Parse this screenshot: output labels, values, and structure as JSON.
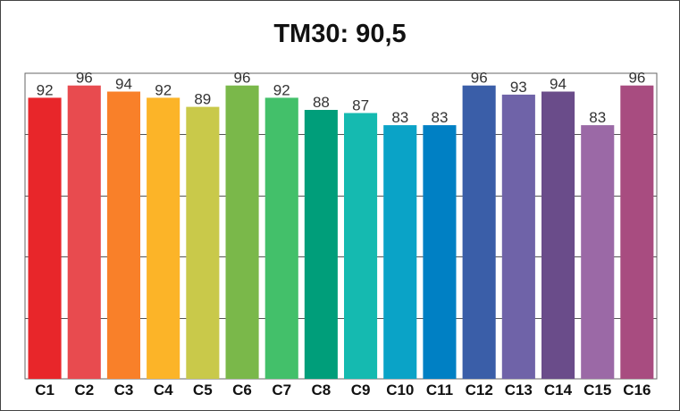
{
  "chart_data": {
    "type": "bar",
    "title": "TM30: 90,5",
    "xlabel": "",
    "ylabel": "",
    "ylim": [
      0,
      100
    ],
    "grid": true,
    "legend": "none",
    "categories": [
      "C1",
      "C2",
      "C3",
      "C4",
      "C5",
      "C6",
      "C7",
      "C8",
      "C9",
      "C10",
      "C11",
      "C12",
      "C13",
      "C14",
      "C15",
      "C16"
    ],
    "values": [
      92,
      96,
      94,
      92,
      89,
      96,
      92,
      88,
      87,
      83,
      83,
      96,
      93,
      94,
      83,
      96
    ],
    "colors": [
      "#e8262a",
      "#e84b4f",
      "#f98029",
      "#fcb428",
      "#c9c94a",
      "#7ab84a",
      "#43c06a",
      "#009e7a",
      "#15bab0",
      "#0aa3c7",
      "#0080c4",
      "#3a5ea8",
      "#6f63a8",
      "#6a4c8a",
      "#9b69a6",
      "#a84c80"
    ]
  }
}
